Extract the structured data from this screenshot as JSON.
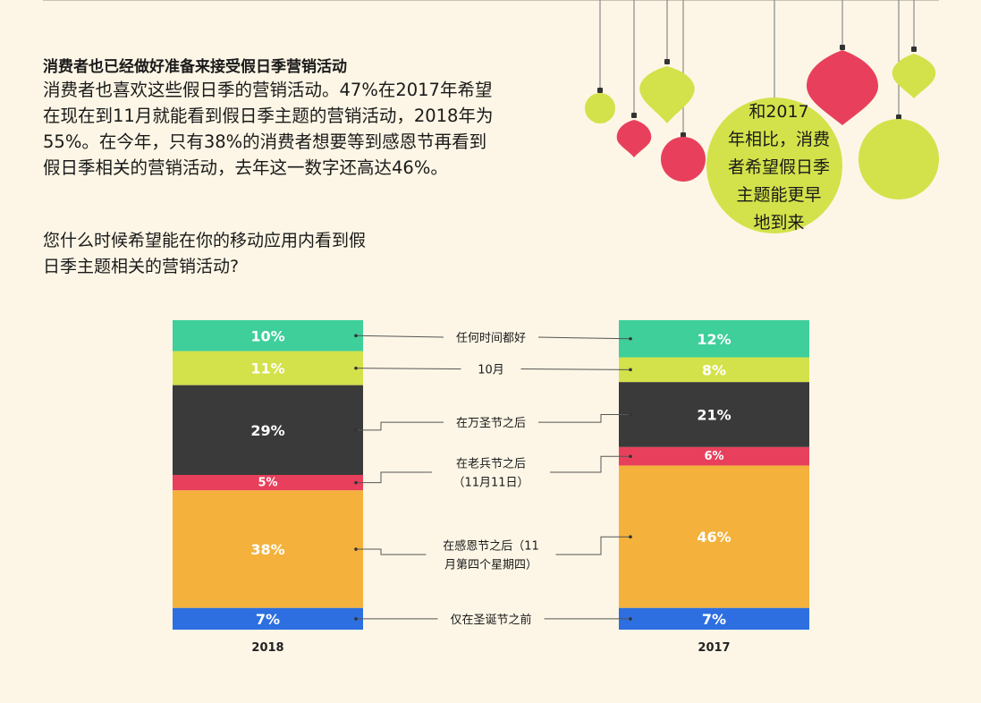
{
  "heading": "消费者也已经做好准备来接受假日季营销活动",
  "paragraph_lines": [
    "消费者也喜欢这些假日季的营销活动。47%在2017年希望",
    "在现在到11月就能看到假日季主题的营销活动，2018年为",
    "55%。在今年，只有38%的消费者想要等到感恩节再看到",
    "假日季相关的营销活动，去年这一数字还高达46%。"
  ],
  "question_lines": [
    "您什么时候希望能在你的移动应用内看到假",
    "日季主题相关的营销活动?"
  ],
  "bubble_lines": [
    "和2017",
    "年相比，消费",
    "者希望假日季",
    "主题能更早",
    "地到来"
  ],
  "colors": {
    "background": "#fdf6e6",
    "green": "#3ecf9b",
    "lime": "#d3e24a",
    "dark": "#3a3a3a",
    "red": "#e8405c",
    "orange": "#f4b23c",
    "blue": "#2d6fe0"
  },
  "chart_data": {
    "type": "bar",
    "stacked": true,
    "categories": [
      "2018",
      "2017"
    ],
    "segments": [
      {
        "label_lines": [
          "任何时间都好"
        ],
        "values": [
          10,
          12
        ],
        "color": "#3ecf9b"
      },
      {
        "label_lines": [
          "10月"
        ],
        "values": [
          11,
          8
        ],
        "color": "#d3e24a"
      },
      {
        "label_lines": [
          "在万圣节之后"
        ],
        "values": [
          29,
          21
        ],
        "color": "#3a3a3a"
      },
      {
        "label_lines": [
          "在老兵节之后",
          "（11月11日）"
        ],
        "values": [
          5,
          6
        ],
        "color": "#e8405c"
      },
      {
        "label_lines": [
          "在感恩节之后（11",
          "月第四个星期四）"
        ],
        "values": [
          38,
          46
        ],
        "color": "#f4b23c"
      },
      {
        "label_lines": [
          "仅在圣诞节之前"
        ],
        "values": [
          7,
          7
        ],
        "color": "#2d6fe0"
      }
    ],
    "unit": "%"
  }
}
